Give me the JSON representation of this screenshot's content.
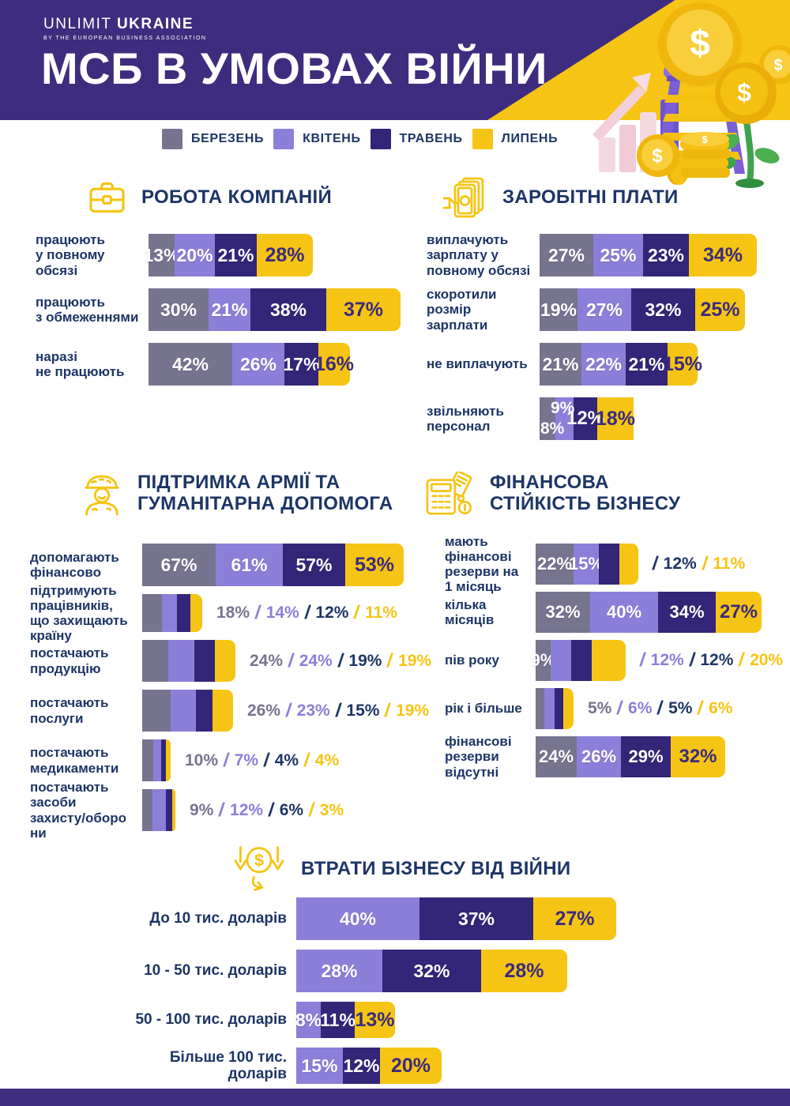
{
  "header": {
    "logo_text": "UNLIMIT",
    "logo_bold": "UKRAINE",
    "logo_sub": "BY THE EUROPEAN BUSINESS ASSOCIATION",
    "title": "МСБ В УМОВАХ ВІЙНИ"
  },
  "series": [
    {
      "label": "БЕРЕЗЕНЬ",
      "color": "#76748F"
    },
    {
      "label": "КВІТЕНЬ",
      "color": "#8C7FD9"
    },
    {
      "label": "ТРАВЕНЬ",
      "color": "#332577"
    },
    {
      "label": "ЛИПЕНЬ",
      "color": "#F6C414"
    }
  ],
  "colors": {
    "header_bg": "#3E2C7E",
    "accent_yellow": "#F6C414",
    "heading_text": "#1D3566",
    "label_on_yellow": "#3A2B7E",
    "outside_text": [
      "#76748F",
      "#8C7FD9",
      "#1D3566",
      "#F6C414"
    ],
    "footer_bg": "#3E2C7E"
  },
  "chart_data": [
    {
      "type": "bar",
      "title": "РОБОТА КОМПАНІЙ",
      "icon": "briefcase-icon",
      "unit": "%",
      "series_idx": [
        0,
        1,
        2,
        3
      ],
      "rows": [
        {
          "label": "працюють\nу повному\nобсязі",
          "values": [
            13,
            20,
            21,
            28
          ],
          "labels": "inside"
        },
        {
          "label": "працюють\nз обмеженнями",
          "values": [
            30,
            21,
            38,
            37
          ],
          "labels": "inside"
        },
        {
          "label": "наразі\nне працюють",
          "values": [
            42,
            26,
            17,
            16
          ],
          "labels": "inside"
        }
      ]
    },
    {
      "type": "bar",
      "title": "ЗАРОБІТНІ ПЛАТИ",
      "icon": "banknotes-icon",
      "unit": "%",
      "series_idx": [
        0,
        1,
        2,
        3
      ],
      "rows": [
        {
          "label": "виплачують\nзарплату у\nповному обсязі",
          "values": [
            27,
            25,
            23,
            34
          ],
          "labels": "inside"
        },
        {
          "label": "скоротили\nрозмір\nзарплати",
          "values": [
            19,
            27,
            32,
            25
          ],
          "labels": "inside"
        },
        {
          "label": "не виплачують",
          "values": [
            21,
            22,
            21,
            15
          ],
          "labels": "inside"
        },
        {
          "label": "звільняють\nперсонал",
          "values": [
            8,
            9,
            12,
            18
          ],
          "labels": "cramped"
        }
      ]
    },
    {
      "type": "bar",
      "title": "ПІДТРИМКА АРМІЇ ТА\nГУМАНІТАРНА ДОПОМОГА",
      "icon": "soldier-icon",
      "unit": "%",
      "series_idx": [
        0,
        1,
        2,
        3
      ],
      "rows": [
        {
          "label": "допомагають\nфінансово",
          "values": [
            67,
            61,
            57,
            53
          ],
          "labels": "inside"
        },
        {
          "label": "підтримують\nпрацівників,\nщо захищають\nкраїну",
          "values": [
            18,
            14,
            12,
            11
          ],
          "labels": "outside"
        },
        {
          "label": "постачають\nпродукцію",
          "values": [
            24,
            24,
            19,
            19
          ],
          "labels": "outside"
        },
        {
          "label": "постачають\nпослуги",
          "values": [
            26,
            23,
            15,
            19
          ],
          "labels": "outside"
        },
        {
          "label": "постачають\nмедикаменти",
          "values": [
            10,
            7,
            4,
            4
          ],
          "labels": "outside"
        },
        {
          "label": "постачають\nзасоби\nзахисту/оборо\nни",
          "values": [
            9,
            12,
            6,
            3
          ],
          "labels": "outside"
        }
      ]
    },
    {
      "type": "bar",
      "title": "ФІНАНСОВА\nСТІЙКІСТЬ БІЗНЕСУ",
      "icon": "calculator-icon",
      "unit": "%",
      "series_idx": [
        0,
        1,
        2,
        3
      ],
      "rows": [
        {
          "label": "мають\nфінансові\nрезерви на\n1 місяць",
          "values": [
            22,
            15,
            12,
            11
          ],
          "labels": "mixed",
          "inside_count": 2
        },
        {
          "label": "кілька\nмісяців",
          "values": [
            32,
            40,
            34,
            27
          ],
          "labels": "inside"
        },
        {
          "label": "пів року",
          "values": [
            9,
            12,
            12,
            20
          ],
          "labels": "mixed",
          "inside_count": 1
        },
        {
          "label": "рік і більше",
          "values": [
            5,
            6,
            5,
            6
          ],
          "labels": "outside"
        },
        {
          "label": "фінансові\nрезерви\nвідсутні",
          "values": [
            24,
            26,
            29,
            32
          ],
          "labels": "inside"
        }
      ]
    },
    {
      "type": "bar",
      "title": "ВТРАТИ БІЗНЕСУ ВІД ВІЙНИ",
      "icon": "money-loss-icon",
      "unit": "%",
      "series_idx": [
        1,
        2,
        3
      ],
      "rows": [
        {
          "label": "До 10 тис. доларів",
          "values": [
            40,
            37,
            27
          ],
          "labels": "inside"
        },
        {
          "label": "10 - 50 тис. доларів",
          "values": [
            28,
            32,
            28
          ],
          "labels": "inside"
        },
        {
          "label": "50 - 100 тис. доларів",
          "values": [
            8,
            11,
            13
          ],
          "labels": "inside"
        },
        {
          "label": "Більше 100 тис. доларів",
          "values": [
            15,
            12,
            20
          ],
          "labels": "inside"
        }
      ]
    }
  ]
}
